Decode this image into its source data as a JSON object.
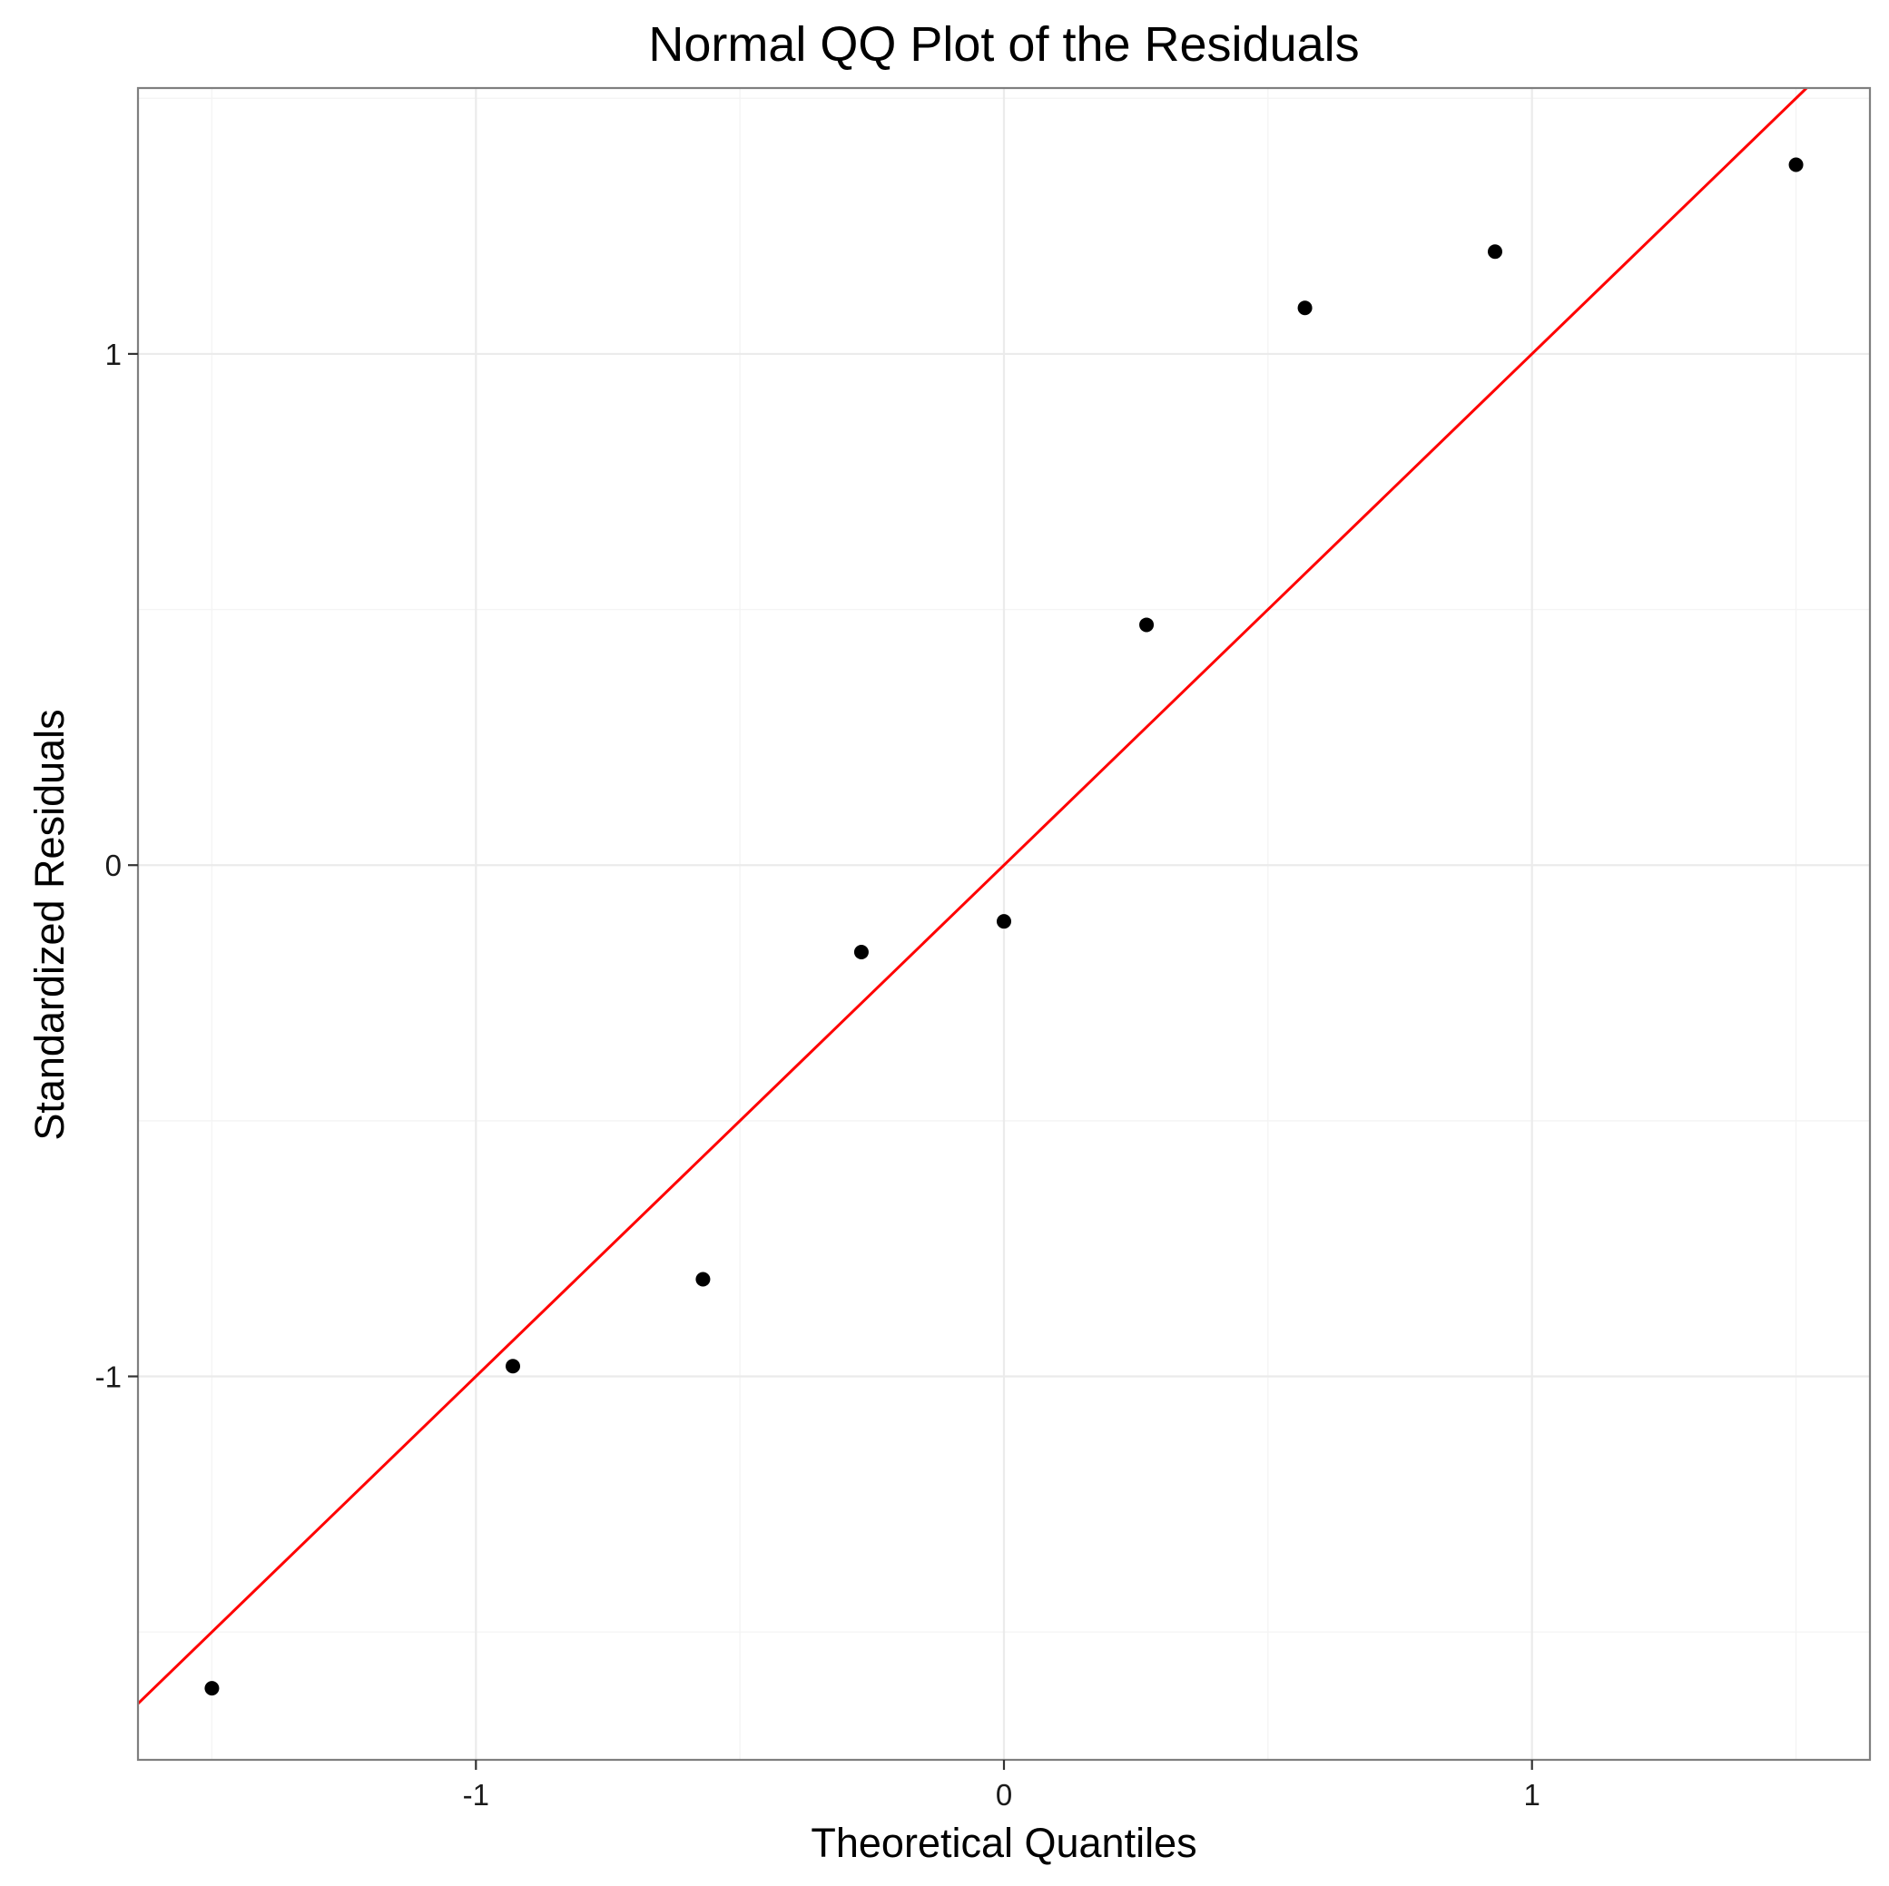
{
  "chart_data": {
    "type": "scatter",
    "title": "Normal QQ Plot of the Residuals",
    "xlabel": "Theoretical Quantiles",
    "ylabel": "Standardized Residuals",
    "xlim": [
      -1.64,
      1.64
    ],
    "ylim": [
      -1.75,
      1.52
    ],
    "x_ticks": [
      -1,
      0,
      1
    ],
    "x_tick_labels": [
      "-1",
      "0",
      "1"
    ],
    "y_ticks": [
      -1,
      0,
      1
    ],
    "y_tick_labels": [
      "-1",
      "0",
      "1"
    ],
    "grid": true,
    "legend": "none",
    "series": [
      {
        "x": [
          -1.5,
          -0.93,
          -0.57,
          -0.27,
          0.0,
          0.27,
          0.57,
          0.93,
          1.5
        ],
        "y": [
          -1.61,
          -0.98,
          -0.81,
          -0.17,
          -0.11,
          0.47,
          1.09,
          1.2,
          1.37
        ],
        "color": "#000000"
      }
    ],
    "reference_line": {
      "intercept": 0,
      "slope": 1,
      "color": "#ff0000"
    }
  }
}
